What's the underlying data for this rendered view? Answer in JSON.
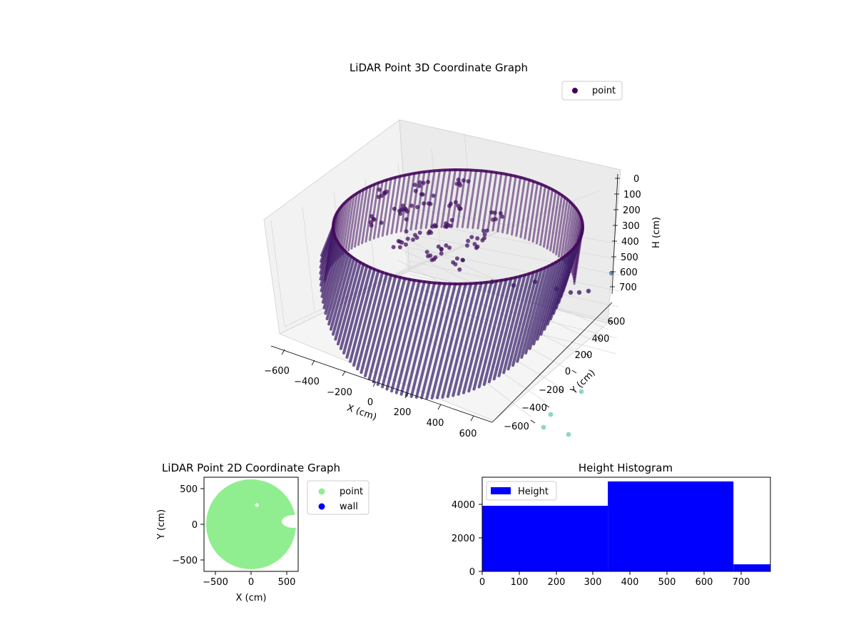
{
  "chart_data": [
    {
      "type": "scatter",
      "projection": "3d",
      "title": "LiDAR Point 3D Coordinate Graph",
      "xlabel": "X (cm)",
      "ylabel": "Y (cm)",
      "zlabel": "H (cm)",
      "xlim": [
        -700,
        700
      ],
      "ylim": [
        -700,
        700
      ],
      "zlim": [
        780,
        0
      ],
      "z_inverted": true,
      "xticks": [
        "−600",
        "−400",
        "−200",
        "0",
        "200",
        "400",
        "600"
      ],
      "yticks": [
        "−600",
        "−400",
        "−200",
        "0",
        "200",
        "400",
        "600"
      ],
      "zticks": [
        "0",
        "100",
        "200",
        "300",
        "400",
        "500",
        "600",
        "700"
      ],
      "grid": true,
      "colormap": "viridis",
      "legend": {
        "position": "top-right",
        "entries": [
          "point"
        ]
      },
      "series": [
        {
          "name": "point",
          "color": "#440154",
          "description": "cylindrical wall scan, radius about 550 cm, height 0-700 cm",
          "outliers": [
            {
              "x": 200,
              "y": -650,
              "h": 760,
              "color": "#5ec4b0"
            },
            {
              "x": 300,
              "y": -700,
              "h": 780,
              "color": "#5ec4b0"
            },
            {
              "x": 100,
              "y": -750,
              "h": 760,
              "color": "#5ec4b0"
            },
            {
              "x": 450,
              "y": -580,
              "h": 780,
              "color": "#5ec4b0"
            }
          ]
        }
      ]
    },
    {
      "type": "scatter",
      "title": "LiDAR Point 2D Coordinate Graph",
      "xlabel": "X (cm)",
      "ylabel": "Y (cm)",
      "xlim": [
        -650,
        650
      ],
      "ylim": [
        -650,
        650
      ],
      "xticks": [
        "−500",
        "0",
        "500"
      ],
      "yticks": [
        "500",
        "0",
        "−500"
      ],
      "legend": {
        "position": "outside-right",
        "entries": [
          "point",
          "wall"
        ]
      },
      "series": [
        {
          "name": "point",
          "color": "#90ee90",
          "description": "filled disc of radius about 620 cm"
        },
        {
          "name": "wall",
          "color": "#0000ff"
        }
      ]
    },
    {
      "type": "bar",
      "subtype": "histogram",
      "title": "Height Histogram",
      "xlim": [
        0,
        780
      ],
      "ylim": [
        0,
        5600
      ],
      "xticks": [
        "0",
        "100",
        "200",
        "300",
        "400",
        "500",
        "600",
        "700"
      ],
      "yticks": [
        "0",
        "2000",
        "4000"
      ],
      "legend": {
        "position": "top-left",
        "entries": [
          "Height"
        ]
      },
      "series": [
        {
          "name": "Height",
          "color": "#0000ff",
          "bins": [
            {
              "from": 0,
              "to": 340,
              "count": 3900
            },
            {
              "from": 340,
              "to": 680,
              "count": 5350
            },
            {
              "from": 680,
              "to": 780,
              "count": 420
            }
          ]
        }
      ]
    }
  ]
}
